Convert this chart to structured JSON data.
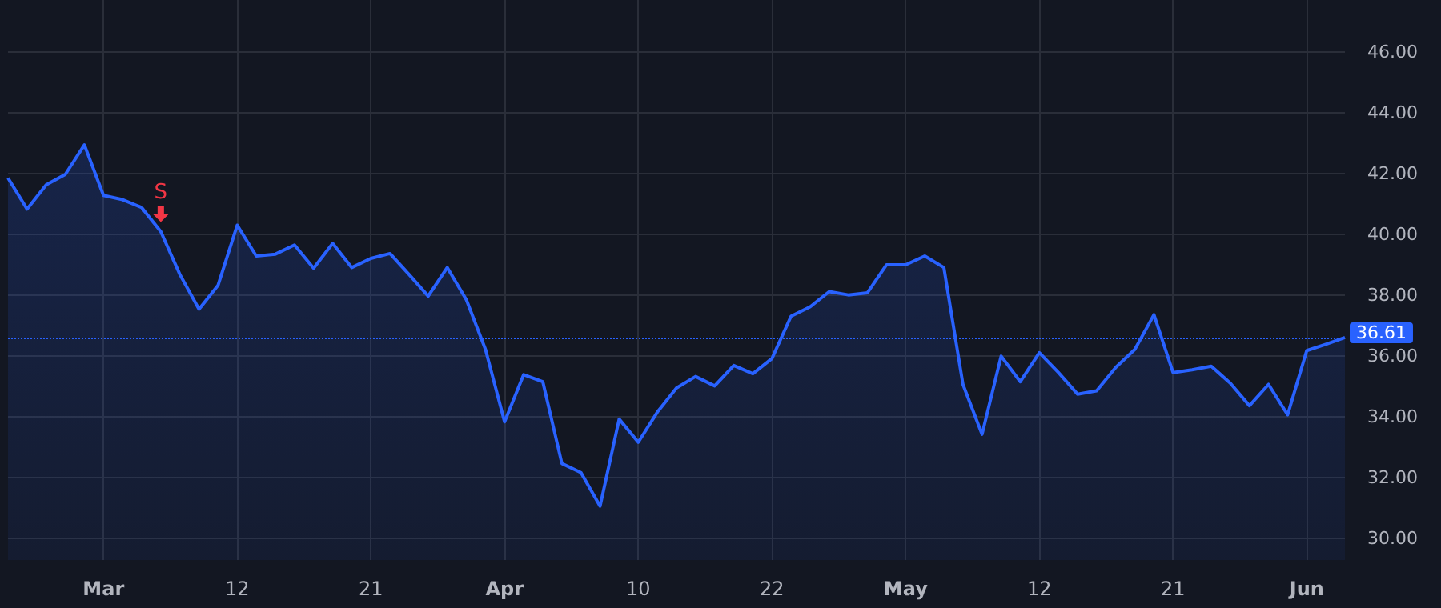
{
  "chart_data": {
    "type": "area",
    "categories": [
      null,
      null,
      null,
      null,
      null,
      "Mar",
      null,
      null,
      null,
      null,
      null,
      null,
      "12",
      null,
      null,
      null,
      null,
      null,
      null,
      "21",
      null,
      null,
      null,
      null,
      null,
      null,
      "Apr",
      null,
      null,
      null,
      null,
      null,
      null,
      "10",
      null,
      null,
      null,
      null,
      null,
      null,
      "22",
      null,
      null,
      null,
      null,
      null,
      null,
      "May",
      null,
      null,
      null,
      null,
      null,
      null,
      "12",
      null,
      null,
      null,
      null,
      null,
      null,
      "21",
      null,
      null,
      null,
      null,
      null,
      null,
      "Jun",
      null,
      null
    ],
    "series": [
      {
        "color": "#2962ff",
        "values": [
          41.85,
          40.83,
          41.63,
          41.97,
          42.94,
          41.28,
          41.14,
          40.88,
          40.09,
          38.68,
          37.54,
          38.33,
          40.3,
          39.29,
          39.35,
          39.65,
          38.89,
          39.7,
          38.91,
          39.21,
          39.37,
          38.68,
          37.97,
          38.91,
          37.85,
          36.22,
          33.84,
          35.39,
          35.16,
          32.47,
          32.17,
          31.07,
          33.93,
          33.17,
          34.16,
          34.95,
          35.33,
          35.02,
          35.69,
          35.42,
          35.92,
          37.31,
          37.62,
          38.12,
          38.01,
          38.08,
          39.0,
          39.0,
          39.29,
          38.91,
          35.07,
          33.43,
          36.0,
          35.16,
          36.11,
          35.46,
          34.75,
          34.86,
          35.63,
          36.22,
          37.36,
          35.46,
          35.55,
          35.67,
          35.11,
          34.37,
          35.07,
          34.07,
          36.18,
          36.39,
          36.61
        ]
      }
    ],
    "ylim": [
      29.3,
      47.7
    ],
    "yticks": [
      {
        "value": 30,
        "label": "30.00"
      },
      {
        "value": 32,
        "label": "32.00"
      },
      {
        "value": 34,
        "label": "34.00"
      },
      {
        "value": 36,
        "label": "36.00"
      },
      {
        "value": 38,
        "label": "38.00"
      },
      {
        "value": 40,
        "label": "40.00"
      },
      {
        "value": 42,
        "label": "42.00"
      },
      {
        "value": 44,
        "label": "44.00"
      },
      {
        "value": 46,
        "label": "46.00"
      }
    ],
    "annotations": [
      {
        "text": "S",
        "y": 40.09
      }
    ],
    "ref_lines": [
      {
        "axis": "y",
        "value": 36.61,
        "label": "36.61",
        "color": "#2962ff",
        "line_style": "dotted"
      }
    ],
    "grid": true,
    "marker": "none",
    "line_style": "solid"
  }
}
